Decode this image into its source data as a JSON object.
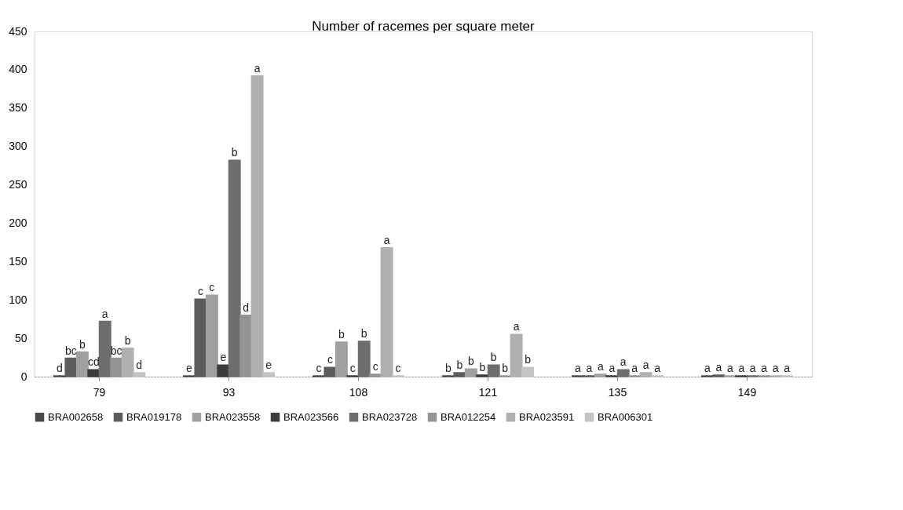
{
  "chart_data": {
    "type": "bar",
    "title": "Number of racemes per square meter",
    "categories": [
      "79",
      "93",
      "108",
      "121",
      "135",
      "149"
    ],
    "ylim": [
      0,
      450
    ],
    "yticks": [
      0,
      50,
      100,
      150,
      200,
      250,
      300,
      350,
      400,
      450
    ],
    "grid": false,
    "legend": "bottom",
    "series": [
      {
        "name": "BRA002658",
        "color": "#4a4a4a",
        "values": [
          1,
          1,
          1,
          1,
          1,
          1
        ],
        "value_labels": [
          "d",
          "e",
          "c",
          "b",
          "a",
          "a"
        ]
      },
      {
        "name": "BRA019178",
        "color": "#5c5c5c",
        "values": [
          24,
          101,
          12,
          5,
          1,
          2
        ],
        "value_labels": [
          "bc",
          "c",
          "c",
          "b",
          "a",
          "a"
        ]
      },
      {
        "name": "BRA023558",
        "color": "#a0a0a0",
        "values": [
          32,
          106,
          45,
          10,
          3,
          1
        ],
        "value_labels": [
          "b",
          "c",
          "b",
          "b",
          "a",
          "a"
        ]
      },
      {
        "name": "BRA023566",
        "color": "#3c3c3c",
        "values": [
          9,
          15,
          1,
          2,
          1,
          1
        ],
        "value_labels": [
          "cd",
          "e",
          "c",
          "b",
          "a",
          "a"
        ]
      },
      {
        "name": "BRA023728",
        "color": "#6e6e6e",
        "values": [
          72,
          282,
          46,
          15,
          9,
          1
        ],
        "value_labels": [
          "a",
          "b",
          "b",
          "b",
          "a",
          "a"
        ]
      },
      {
        "name": "BRA012254",
        "color": "#949494",
        "values": [
          24,
          80,
          3,
          1,
          1,
          1
        ],
        "value_labels": [
          "bc",
          "d",
          "c",
          "b",
          "a",
          "a"
        ]
      },
      {
        "name": "BRA023591",
        "color": "#b0b0b0",
        "values": [
          37,
          392,
          168,
          55,
          5,
          1
        ],
        "value_labels": [
          "b",
          "a",
          "a",
          "a",
          "a",
          "a"
        ]
      },
      {
        "name": "BRA006301",
        "color": "#c4c4c4",
        "values": [
          5,
          5,
          1,
          12,
          1,
          1
        ],
        "value_labels": [
          "d",
          "e",
          "c",
          "b",
          "a",
          "a"
        ]
      }
    ]
  }
}
